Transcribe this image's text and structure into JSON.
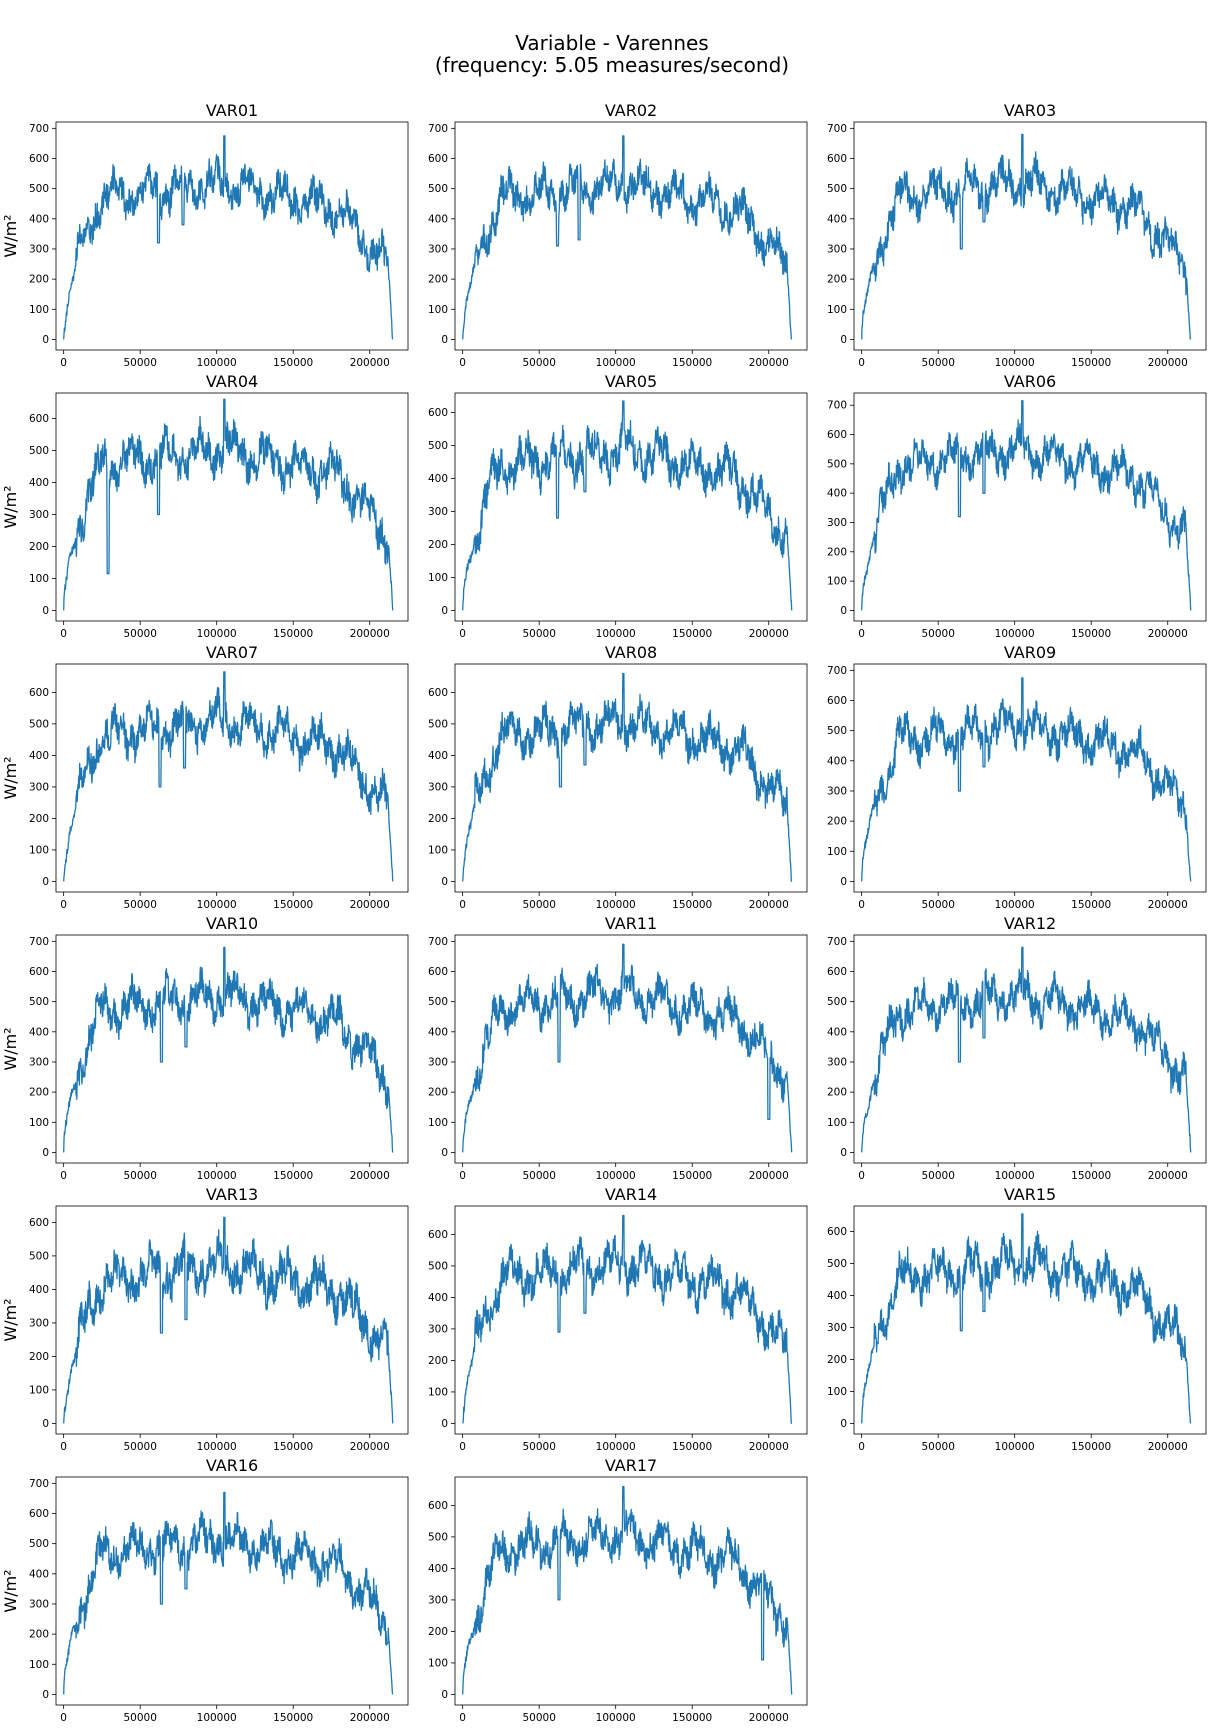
{
  "figure": {
    "title_line1": "Variable - Varennes",
    "title_line2": "(frequency: 5.05 measures/second)"
  },
  "chart_data": [
    {
      "type": "line",
      "title": "VAR01",
      "ylabel": "W/m²",
      "xlim": [
        0,
        215000
      ],
      "ylim": [
        0,
        700
      ],
      "xticks": [
        0,
        50000,
        100000,
        150000,
        200000
      ],
      "yticks": [
        0,
        100,
        200,
        300,
        400,
        500,
        600,
        700
      ],
      "color": "#1f77b4",
      "peak": 675,
      "seed": 11,
      "dips": [
        [
          62000,
          320
        ],
        [
          78000,
          380
        ]
      ]
    },
    {
      "type": "line",
      "title": "VAR02",
      "ylabel": "",
      "xlim": [
        0,
        215000
      ],
      "ylim": [
        0,
        700
      ],
      "xticks": [
        0,
        50000,
        100000,
        150000,
        200000
      ],
      "yticks": [
        0,
        100,
        200,
        300,
        400,
        500,
        600,
        700
      ],
      "color": "#1f77b4",
      "peak": 675,
      "seed": 12,
      "dips": [
        [
          62000,
          310
        ],
        [
          76000,
          330
        ]
      ]
    },
    {
      "type": "line",
      "title": "VAR03",
      "ylabel": "",
      "xlim": [
        0,
        215000
      ],
      "ylim": [
        0,
        700
      ],
      "xticks": [
        0,
        50000,
        100000,
        150000,
        200000
      ],
      "yticks": [
        0,
        100,
        200,
        300,
        400,
        500,
        600,
        700
      ],
      "color": "#1f77b4",
      "peak": 680,
      "seed": 13,
      "dips": [
        [
          65000,
          300
        ],
        [
          80000,
          390
        ]
      ]
    },
    {
      "type": "line",
      "title": "VAR04",
      "ylabel": "W/m²",
      "xlim": [
        0,
        215000
      ],
      "ylim": [
        0,
        660
      ],
      "xticks": [
        0,
        50000,
        100000,
        150000,
        200000
      ],
      "yticks": [
        0,
        100,
        200,
        300,
        400,
        500,
        600
      ],
      "color": "#1f77b4",
      "peak": 660,
      "seed": 14,
      "dips": [
        [
          29000,
          115
        ],
        [
          62000,
          300
        ]
      ]
    },
    {
      "type": "line",
      "title": "VAR05",
      "ylabel": "",
      "xlim": [
        0,
        215000
      ],
      "ylim": [
        0,
        640
      ],
      "xticks": [
        0,
        50000,
        100000,
        150000,
        200000
      ],
      "yticks": [
        0,
        100,
        200,
        300,
        400,
        500,
        600
      ],
      "color": "#1f77b4",
      "peak": 635,
      "seed": 15,
      "dips": [
        [
          62000,
          280
        ],
        [
          80000,
          360
        ]
      ]
    },
    {
      "type": "line",
      "title": "VAR06",
      "ylabel": "",
      "xlim": [
        0,
        215000
      ],
      "ylim": [
        0,
        720
      ],
      "xticks": [
        0,
        50000,
        100000,
        150000,
        200000
      ],
      "yticks": [
        0,
        100,
        200,
        300,
        400,
        500,
        600,
        700
      ],
      "color": "#1f77b4",
      "peak": 715,
      "seed": 16,
      "dips": [
        [
          64000,
          320
        ],
        [
          80000,
          400
        ]
      ]
    },
    {
      "type": "line",
      "title": "VAR07",
      "ylabel": "W/m²",
      "xlim": [
        0,
        215000
      ],
      "ylim": [
        0,
        670
      ],
      "xticks": [
        0,
        50000,
        100000,
        150000,
        200000
      ],
      "yticks": [
        0,
        100,
        200,
        300,
        400,
        500,
        600
      ],
      "color": "#1f77b4",
      "peak": 665,
      "seed": 17,
      "dips": [
        [
          63000,
          300
        ],
        [
          79000,
          360
        ]
      ]
    },
    {
      "type": "line",
      "title": "VAR08",
      "ylabel": "",
      "xlim": [
        0,
        215000
      ],
      "ylim": [
        0,
        670
      ],
      "xticks": [
        0,
        50000,
        100000,
        150000,
        200000
      ],
      "yticks": [
        0,
        100,
        200,
        300,
        400,
        500,
        600
      ],
      "color": "#1f77b4",
      "peak": 660,
      "seed": 18,
      "dips": [
        [
          64000,
          300
        ],
        [
          80000,
          370
        ]
      ]
    },
    {
      "type": "line",
      "title": "VAR09",
      "ylabel": "",
      "xlim": [
        0,
        215000
      ],
      "ylim": [
        0,
        700
      ],
      "xticks": [
        0,
        50000,
        100000,
        150000,
        200000
      ],
      "yticks": [
        0,
        100,
        200,
        300,
        400,
        500,
        600,
        700
      ],
      "color": "#1f77b4",
      "peak": 675,
      "seed": 19,
      "dips": [
        [
          64000,
          300
        ],
        [
          80000,
          380
        ]
      ]
    },
    {
      "type": "line",
      "title": "VAR10",
      "ylabel": "W/m²",
      "xlim": [
        0,
        215000
      ],
      "ylim": [
        0,
        700
      ],
      "xticks": [
        0,
        50000,
        100000,
        150000,
        200000
      ],
      "yticks": [
        0,
        100,
        200,
        300,
        400,
        500,
        600,
        700
      ],
      "color": "#1f77b4",
      "peak": 680,
      "seed": 20,
      "dips": [
        [
          64000,
          300
        ],
        [
          80000,
          350
        ]
      ]
    },
    {
      "type": "line",
      "title": "VAR11",
      "ylabel": "",
      "xlim": [
        0,
        215000
      ],
      "ylim": [
        0,
        700
      ],
      "xticks": [
        0,
        50000,
        100000,
        150000,
        200000
      ],
      "yticks": [
        0,
        100,
        200,
        300,
        400,
        500,
        600,
        700
      ],
      "color": "#1f77b4",
      "peak": 690,
      "seed": 21,
      "dips": [
        [
          63000,
          300
        ],
        [
          200000,
          110
        ]
      ]
    },
    {
      "type": "line",
      "title": "VAR12",
      "ylabel": "",
      "xlim": [
        0,
        215000
      ],
      "ylim": [
        0,
        700
      ],
      "xticks": [
        0,
        50000,
        100000,
        150000,
        200000
      ],
      "yticks": [
        0,
        100,
        200,
        300,
        400,
        500,
        600,
        700
      ],
      "color": "#1f77b4",
      "peak": 680,
      "seed": 22,
      "dips": [
        [
          64000,
          300
        ],
        [
          80000,
          380
        ]
      ]
    },
    {
      "type": "line",
      "title": "VAR13",
      "ylabel": "W/m²",
      "xlim": [
        0,
        215000
      ],
      "ylim": [
        0,
        630
      ],
      "xticks": [
        0,
        50000,
        100000,
        150000,
        200000
      ],
      "yticks": [
        0,
        100,
        200,
        300,
        400,
        500,
        600
      ],
      "color": "#1f77b4",
      "peak": 615,
      "seed": 23,
      "dips": [
        [
          64000,
          270
        ],
        [
          80000,
          310
        ]
      ]
    },
    {
      "type": "line",
      "title": "VAR14",
      "ylabel": "",
      "xlim": [
        0,
        215000
      ],
      "ylim": [
        0,
        670
      ],
      "xticks": [
        0,
        50000,
        100000,
        150000,
        200000
      ],
      "yticks": [
        0,
        100,
        200,
        300,
        400,
        500,
        600
      ],
      "color": "#1f77b4",
      "peak": 660,
      "seed": 24,
      "dips": [
        [
          63000,
          290
        ],
        [
          80000,
          350
        ]
      ]
    },
    {
      "type": "line",
      "title": "VAR15",
      "ylabel": "",
      "xlim": [
        0,
        215000
      ],
      "ylim": [
        0,
        660
      ],
      "xticks": [
        0,
        50000,
        100000,
        150000,
        200000
      ],
      "yticks": [
        0,
        100,
        200,
        300,
        400,
        500,
        600
      ],
      "color": "#1f77b4",
      "peak": 655,
      "seed": 25,
      "dips": [
        [
          65000,
          290
        ],
        [
          80000,
          350
        ]
      ]
    },
    {
      "type": "line",
      "title": "VAR16",
      "ylabel": "W/m²",
      "xlim": [
        0,
        215000
      ],
      "ylim": [
        0,
        700
      ],
      "xticks": [
        0,
        50000,
        100000,
        150000,
        200000
      ],
      "yticks": [
        0,
        100,
        200,
        300,
        400,
        500,
        600,
        700
      ],
      "color": "#1f77b4",
      "peak": 670,
      "seed": 26,
      "dips": [
        [
          64000,
          300
        ],
        [
          80000,
          350
        ]
      ]
    },
    {
      "type": "line",
      "title": "VAR17",
      "ylabel": "",
      "xlim": [
        0,
        215000
      ],
      "ylim": [
        0,
        670
      ],
      "xticks": [
        0,
        50000,
        100000,
        150000,
        200000
      ],
      "yticks": [
        0,
        100,
        200,
        300,
        400,
        500,
        600
      ],
      "color": "#1f77b4",
      "peak": 660,
      "seed": 27,
      "dips": [
        [
          63000,
          300
        ],
        [
          196000,
          110
        ]
      ]
    }
  ]
}
